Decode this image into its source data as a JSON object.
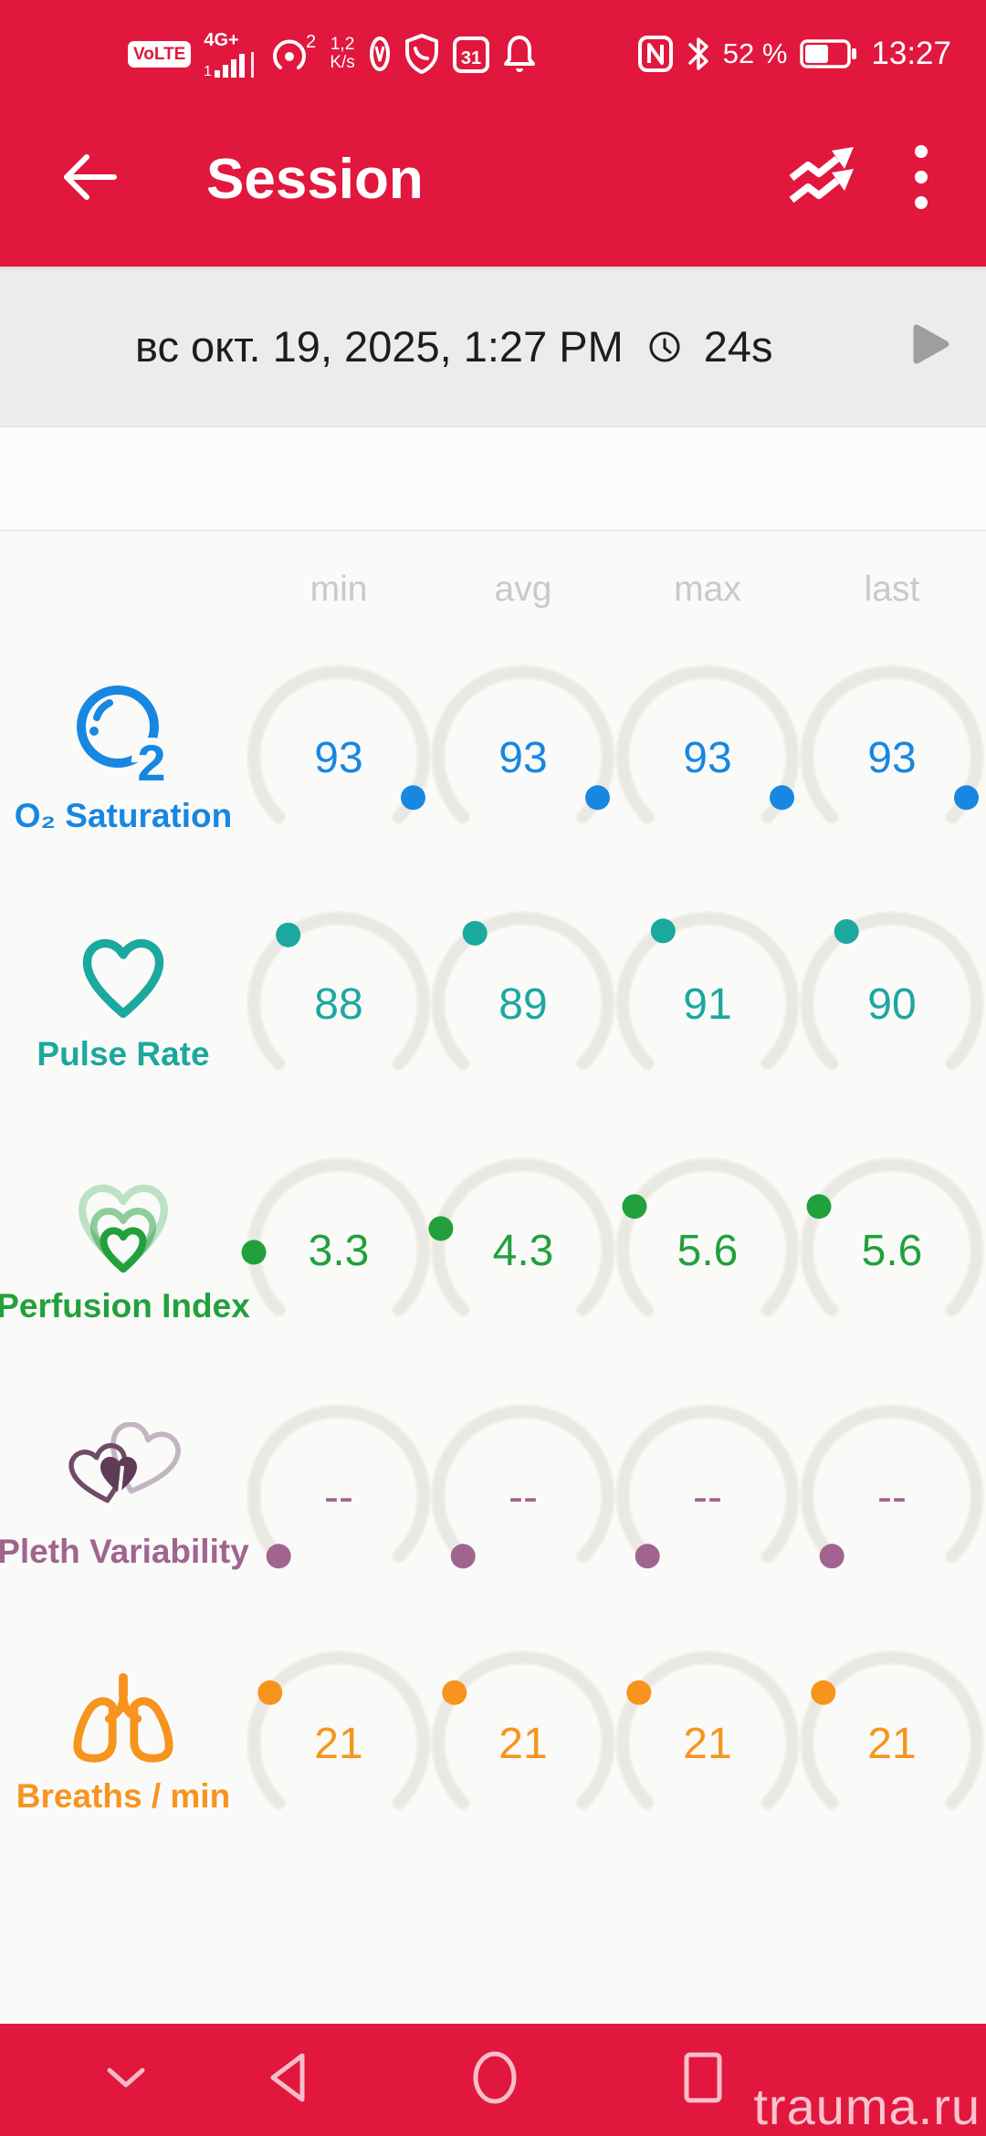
{
  "colors": {
    "app_red": "#E1173E",
    "band_bg": "#ECECEC",
    "content_bg": "#FAFAF9",
    "arc_gray": "#E8E8E5",
    "arc_halo": "#F0E8D6",
    "header_label_gray": "#C9C9C9",
    "date_text": "#1D1D1D",
    "play_gray": "#9E9E9E"
  },
  "status_bar": {
    "volte": "VoLTE",
    "network": "4G+",
    "sim_indicator": "1",
    "hotspot_badge": "2",
    "speed_top": "1,2",
    "speed_bottom": "K/s",
    "calendar_day": "31",
    "battery_percent": "52 %",
    "battery_level": 0.55,
    "time": "13:27"
  },
  "header": {
    "title": "Session"
  },
  "session_bar": {
    "datetime": "вс окт. 19, 2025, 1:27 PM",
    "duration": "24s"
  },
  "metrics": {
    "columns": [
      "min",
      "avg",
      "max",
      "last"
    ],
    "rows": [
      {
        "id": "o2",
        "label": "O₂ Saturation",
        "icon": "o2-bubble-icon",
        "color": "#1787E1",
        "values": [
          "93",
          "93",
          "93",
          "93"
        ],
        "dot_fracs": [
          0.94,
          0.94,
          0.94,
          0.94
        ]
      },
      {
        "id": "pulse",
        "label": "Pulse Rate",
        "icon": "heart-icon",
        "color": "#1BA89E",
        "values": [
          "88",
          "89",
          "91",
          "90"
        ],
        "dot_fracs": [
          0.365,
          0.372,
          0.383,
          0.38
        ]
      },
      {
        "id": "perfusion",
        "label": "Perfusion Index",
        "icon": "nested-hearts-icon",
        "color": "#22A03C",
        "values": [
          "3.3",
          "4.3",
          "5.6",
          "5.6"
        ],
        "dot_fracs": [
          0.16,
          0.22,
          0.28,
          0.28
        ]
      },
      {
        "id": "pleth",
        "label": "Pleth Variability",
        "icon": "overlapping-hearts-icon",
        "color": "#A1648F",
        "values": [
          "--",
          "--",
          "--",
          "--"
        ],
        "dot_fracs": [
          0,
          0,
          0,
          0
        ]
      },
      {
        "id": "breaths",
        "label": "Breaths / min",
        "icon": "lungs-icon",
        "color": "#F7941E",
        "values": [
          "21",
          "21",
          "21",
          "21"
        ],
        "dot_fracs": [
          0.3,
          0.3,
          0.3,
          0.3
        ]
      }
    ]
  },
  "watermark": "trauma.ru"
}
